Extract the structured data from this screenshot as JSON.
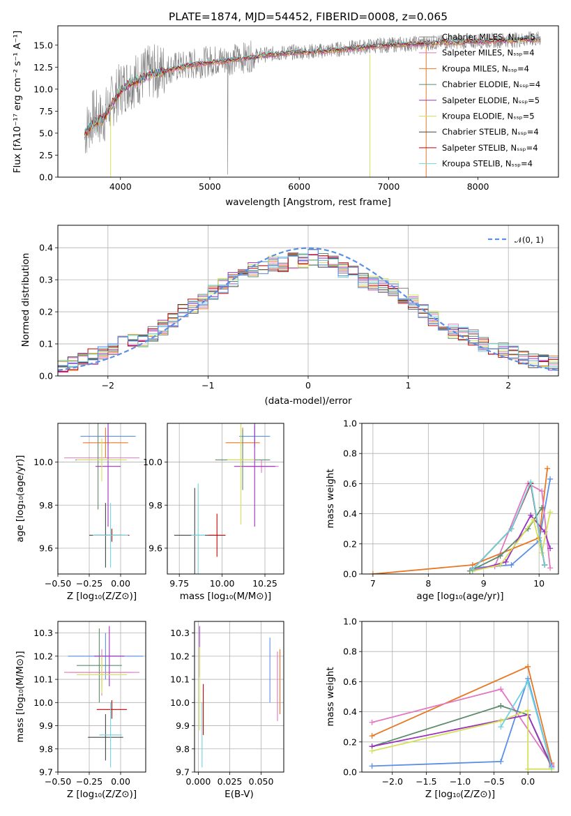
{
  "chart_data": [
    {
      "id": "spectrum",
      "type": "line",
      "title": "PLATE=1874, MJD=54452, FIBERID=0008, z=0.065",
      "xlabel": "wavelength [Angstrom, rest frame]",
      "ylabel": "Flux [fλ10⁻¹⁷ erg cm⁻² s⁻¹ A⁻¹]",
      "xlim": [
        3300,
        8900
      ],
      "ylim": [
        0,
        17.2
      ],
      "xticks": [
        4000,
        5000,
        6000,
        7000,
        8000
      ],
      "yticks": [
        0.0,
        2.5,
        5.0,
        7.5,
        10.0,
        12.5,
        15.0
      ],
      "grid": false,
      "legend_position": "top-right",
      "x": [
        3600,
        3700,
        3800,
        3900,
        4000,
        4100,
        4200,
        4300,
        4400,
        4500,
        4600,
        4700,
        4800,
        4900,
        5000,
        5100,
        5200,
        5300,
        5400,
        5500,
        5600,
        5700,
        5800,
        5900,
        6000,
        6100,
        6200,
        6300,
        6400,
        6500,
        6600,
        6700,
        6800,
        6900,
        7000,
        7100,
        7200,
        7300,
        7400,
        7500,
        7600,
        7700,
        7800,
        7900,
        8000,
        8100,
        8200,
        8300,
        8400,
        8500,
        8600,
        8700
      ],
      "data_flux": [
        5.0,
        7.0,
        6.5,
        8.5,
        10.0,
        10.8,
        11.2,
        11.8,
        12.0,
        12.2,
        12.5,
        12.6,
        12.8,
        13.0,
        13.2,
        13.3,
        13.3,
        13.5,
        13.6,
        13.8,
        13.9,
        14.0,
        14.1,
        14.2,
        14.2,
        14.3,
        14.3,
        14.4,
        14.5,
        14.6,
        14.7,
        14.8,
        14.9,
        15.0,
        15.0,
        15.1,
        15.1,
        15.2,
        15.2,
        15.3,
        15.3,
        15.4,
        15.4,
        15.4,
        15.5,
        15.5,
        15.5,
        15.6,
        15.6,
        15.6,
        15.7,
        15.7
      ],
      "model_flux": [
        4.8,
        6.2,
        6.5,
        8.2,
        9.8,
        10.6,
        11.0,
        11.5,
        11.8,
        12.0,
        12.3,
        12.5,
        12.7,
        12.9,
        13.0,
        13.1,
        13.2,
        13.4,
        13.5,
        13.6,
        13.8,
        13.9,
        14.0,
        14.1,
        14.2,
        14.2,
        14.3,
        14.3,
        14.4,
        14.5,
        14.6,
        14.7,
        14.8,
        14.9,
        15.0,
        15.0,
        15.1,
        15.1,
        15.2,
        15.2,
        15.3,
        15.3,
        15.3,
        15.4,
        15.4,
        15.4,
        15.5,
        15.5,
        15.5,
        15.6,
        15.6,
        15.6
      ],
      "series": [
        {
          "name": "Chabrier MILES, Nₛₛₚ=5",
          "color": "#7f7f7f"
        },
        {
          "name": "Salpeter MILES, Nₛₛₚ=4",
          "color": "#e377c2"
        },
        {
          "name": "Kroupa MILES, Nₛₛₚ=4",
          "color": "#e87722"
        },
        {
          "name": "Chabrier ELODIE, Nₛₛₚ=4",
          "color": "#5b8c6b"
        },
        {
          "name": "Salpeter ELODIE, Nₛₛₚ=5",
          "color": "#9b30c0"
        },
        {
          "name": "Kroupa ELODIE, Nₛₛₚ=5",
          "color": "#d4e157"
        },
        {
          "name": "Chabrier STELIB, Nₛₛₚ=4",
          "color": "#444444"
        },
        {
          "name": "Salpeter STELIB, Nₛₛₚ=4",
          "color": "#c00000"
        },
        {
          "name": "Kroupa STELIB, Nₛₛₚ=4",
          "color": "#6fd3dd"
        }
      ]
    },
    {
      "id": "residuals",
      "type": "line",
      "xlabel": "(data-model)/error",
      "ylabel": "Normed distribution",
      "xlim": [
        -2.5,
        2.5
      ],
      "ylim": [
        0,
        0.47
      ],
      "xticks": [
        -2,
        -1,
        0,
        1,
        2
      ],
      "yticks": [
        0.0,
        0.1,
        0.2,
        0.3,
        0.4
      ],
      "grid": true,
      "legend_position": "top-right",
      "gaussian_label": "𝒩(0, 1)",
      "bin_centers": [
        -2.45,
        -2.35,
        -2.25,
        -2.15,
        -2.05,
        -1.95,
        -1.85,
        -1.75,
        -1.65,
        -1.55,
        -1.45,
        -1.35,
        -1.25,
        -1.15,
        -1.05,
        -0.95,
        -0.85,
        -0.75,
        -0.65,
        -0.55,
        -0.45,
        -0.35,
        -0.25,
        -0.15,
        -0.05,
        0.05,
        0.15,
        0.25,
        0.35,
        0.45,
        0.55,
        0.65,
        0.75,
        0.85,
        0.95,
        1.05,
        1.15,
        1.25,
        1.35,
        1.45,
        1.55,
        1.65,
        1.75,
        1.85,
        1.95,
        2.05,
        2.15,
        2.25,
        2.35,
        2.45
      ],
      "histogram": [
        0.03,
        0.04,
        0.05,
        0.06,
        0.07,
        0.09,
        0.11,
        0.11,
        0.11,
        0.13,
        0.15,
        0.17,
        0.2,
        0.22,
        0.23,
        0.26,
        0.28,
        0.3,
        0.32,
        0.33,
        0.34,
        0.35,
        0.35,
        0.36,
        0.36,
        0.37,
        0.36,
        0.35,
        0.33,
        0.32,
        0.3,
        0.29,
        0.28,
        0.27,
        0.25,
        0.23,
        0.2,
        0.18,
        0.16,
        0.14,
        0.13,
        0.12,
        0.1,
        0.09,
        0.08,
        0.07,
        0.06,
        0.05,
        0.05,
        0.04
      ],
      "series_colors": [
        "#7f7f7f",
        "#e377c2",
        "#e87722",
        "#5b8c6b",
        "#9b30c0",
        "#d4e157",
        "#444444",
        "#c00000",
        "#6fd3dd",
        "#5b8ee6"
      ]
    },
    {
      "id": "z-age",
      "type": "scatter",
      "xlabel": "Z [log₁₀(Z/Z⊙)]",
      "ylabel": "age  [log₁₀(age/yr)]",
      "xlim": [
        -0.5,
        0.2
      ],
      "ylim": [
        9.48,
        10.18
      ],
      "xticks": [
        -0.5,
        -0.25,
        0.0
      ],
      "xtick_labels": [
        "−0.50",
        "−0.25",
        "0.00"
      ],
      "yticks": [
        9.6,
        9.8,
        10.0
      ],
      "grid": true,
      "points": [
        {
          "x": -0.1,
          "y": 10.12,
          "xerr": 0.22,
          "yerr": 0.05,
          "color": "#5b8ee6"
        },
        {
          "x": -0.12,
          "y": 10.09,
          "xerr": 0.18,
          "yerr": 0.07,
          "color": "#e87722"
        },
        {
          "x": -0.15,
          "y": 10.02,
          "xerr": 0.3,
          "yerr": 0.04,
          "color": "#e377c2"
        },
        {
          "x": -0.18,
          "y": 10.01,
          "xerr": 0.18,
          "yerr": 0.23,
          "color": "#5b8c6b"
        },
        {
          "x": -0.1,
          "y": 9.98,
          "xerr": 0.1,
          "yerr": 0.28,
          "color": "#9b30c0"
        },
        {
          "x": -0.15,
          "y": 10.01,
          "xerr": 0.2,
          "yerr": 0.1,
          "color": "#d4e157"
        },
        {
          "x": -0.12,
          "y": 9.66,
          "xerr": 0.13,
          "yerr": 0.15,
          "color": "#444444"
        },
        {
          "x": -0.07,
          "y": 9.66,
          "xerr": 0.14,
          "yerr": 0.03,
          "color": "#c00000"
        },
        {
          "x": -0.08,
          "y": 9.66,
          "xerr": 0.14,
          "yerr": 0.15,
          "color": "#6fd3dd"
        }
      ]
    },
    {
      "id": "mass-age",
      "type": "scatter",
      "xlabel": "mass [log₁₀(M/M⊙)]",
      "xlim": [
        9.68,
        10.36
      ],
      "ylim": [
        9.48,
        10.18
      ],
      "xticks": [
        9.75,
        10.0,
        10.25
      ],
      "xtick_labels": [
        "9.75",
        "10.00",
        "10.25"
      ],
      "yticks": [
        9.6,
        9.8,
        10.0
      ],
      "grid": true,
      "points": [
        {
          "x": 10.19,
          "y": 10.12,
          "xerr": 0.09,
          "yerr": 0.05,
          "color": "#5b8ee6"
        },
        {
          "x": 10.12,
          "y": 10.09,
          "xerr": 0.1,
          "yerr": 0.07,
          "color": "#e87722"
        },
        {
          "x": 10.23,
          "y": 9.98,
          "xerr": 0.1,
          "yerr": 0.03,
          "color": "#e377c2"
        },
        {
          "x": 10.12,
          "y": 10.01,
          "xerr": 0.16,
          "yerr": 0.14,
          "color": "#5b8c6b"
        },
        {
          "x": 10.19,
          "y": 9.98,
          "xerr": 0.12,
          "yerr": 0.28,
          "color": "#9b30c0"
        },
        {
          "x": 10.11,
          "y": 10.01,
          "xerr": 0.08,
          "yerr": 0.3,
          "color": "#d4e157"
        },
        {
          "x": 9.84,
          "y": 9.66,
          "xerr": 0.12,
          "yerr": 0.22,
          "color": "#444444"
        },
        {
          "x": 9.97,
          "y": 9.66,
          "xerr": 0.05,
          "yerr": 0.1,
          "color": "#c00000"
        },
        {
          "x": 9.86,
          "y": 9.66,
          "xerr": 0.04,
          "yerr": 0.24,
          "color": "#6fd3dd"
        }
      ]
    },
    {
      "id": "age-weight",
      "type": "line",
      "xlabel": "age  [log₁₀(age/yr)]",
      "ylabel": "mass weight",
      "xlim": [
        6.8,
        10.35
      ],
      "ylim": [
        0,
        1.0
      ],
      "xticks": [
        7,
        8,
        9,
        10
      ],
      "yticks": [
        0.0,
        0.2,
        0.4,
        0.6,
        0.8,
        1.0
      ],
      "grid": true,
      "series": [
        {
          "color": "#5b8ee6",
          "x": [
            8.8,
            9.5,
            10.0,
            10.2
          ],
          "y": [
            0.04,
            0.06,
            0.22,
            0.63
          ]
        },
        {
          "color": "#e87722",
          "x": [
            7.0,
            8.8,
            10.0,
            10.15
          ],
          "y": [
            0.0,
            0.06,
            0.24,
            0.7
          ]
        },
        {
          "color": "#e377c2",
          "x": [
            8.8,
            9.2,
            9.8,
            10.05,
            10.2
          ],
          "y": [
            0.03,
            0.05,
            0.6,
            0.55,
            0.04
          ]
        },
        {
          "color": "#5b8c6b",
          "x": [
            8.75,
            9.3,
            9.8,
            10.05
          ],
          "y": [
            0.02,
            0.12,
            0.3,
            0.44
          ]
        },
        {
          "color": "#9b30c0",
          "x": [
            8.8,
            9.4,
            9.85,
            10.1,
            10.2
          ],
          "y": [
            0.02,
            0.08,
            0.39,
            0.28,
            0.17
          ]
        },
        {
          "color": "#d4e157",
          "x": [
            8.8,
            9.3,
            9.9,
            10.05,
            10.2
          ],
          "y": [
            0.02,
            0.06,
            0.36,
            0.14,
            0.41
          ]
        },
        {
          "color": "#444444",
          "x": [
            8.8,
            9.5,
            9.85,
            10.1
          ],
          "y": [
            0.03,
            0.3,
            0.6,
            0.06
          ]
        },
        {
          "color": "#c00000",
          "x": [
            8.8,
            9.5,
            9.85,
            10.1
          ],
          "y": [
            0.03,
            0.3,
            0.6,
            0.06
          ]
        },
        {
          "color": "#6fd3dd",
          "x": [
            8.8,
            9.5,
            9.85,
            10.1
          ],
          "y": [
            0.03,
            0.3,
            0.61,
            0.06
          ]
        }
      ]
    },
    {
      "id": "z-mass",
      "type": "scatter",
      "xlabel": "Z [log₁₀(Z/Z⊙)]",
      "ylabel": "mass [log₁₀(M/M⊙)]",
      "xlim": [
        -0.5,
        0.2
      ],
      "ylim": [
        9.7,
        10.35
      ],
      "xticks": [
        -0.5,
        -0.25,
        0.0
      ],
      "xtick_labels": [
        "−0.50",
        "−0.25",
        "0.00"
      ],
      "yticks": [
        9.7,
        9.8,
        9.9,
        10.0,
        10.1,
        10.2,
        10.3
      ],
      "grid": true,
      "points": [
        {
          "x": -0.12,
          "y": 10.2,
          "xerr": 0.3,
          "yerr": 0.1,
          "color": "#5b8ee6"
        },
        {
          "x": -0.15,
          "y": 10.13,
          "xerr": 0.25,
          "yerr": 0.07,
          "color": "#e87722"
        },
        {
          "x": -0.15,
          "y": 10.13,
          "xerr": 0.3,
          "yerr": 0.1,
          "color": "#e377c2"
        },
        {
          "x": -0.17,
          "y": 10.16,
          "xerr": 0.18,
          "yerr": 0.16,
          "color": "#5b8c6b"
        },
        {
          "x": -0.09,
          "y": 10.2,
          "xerr": 0.12,
          "yerr": 0.13,
          "color": "#9b30c0"
        },
        {
          "x": -0.15,
          "y": 10.12,
          "xerr": 0.2,
          "yerr": 0.08,
          "color": "#d4e157"
        },
        {
          "x": -0.12,
          "y": 9.85,
          "xerr": 0.14,
          "yerr": 0.1,
          "color": "#444444"
        },
        {
          "x": -0.07,
          "y": 9.97,
          "xerr": 0.12,
          "yerr": 0.04,
          "color": "#c00000"
        },
        {
          "x": -0.08,
          "y": 9.86,
          "xerr": 0.09,
          "yerr": 0.14,
          "color": "#6fd3dd"
        }
      ]
    },
    {
      "id": "ebv-mass",
      "type": "scatter",
      "xlabel": "E(B-V)",
      "xlim": [
        -0.003,
        0.068
      ],
      "ylim": [
        9.7,
        10.35
      ],
      "xticks": [
        0.0,
        0.025,
        0.05
      ],
      "xtick_labels": [
        "0.000",
        "0.025",
        "0.050"
      ],
      "yticks": [
        9.7,
        9.8,
        9.9,
        10.0,
        10.1,
        10.2,
        10.3
      ],
      "grid": true,
      "points": [
        {
          "x": 0.057,
          "y": 10.14,
          "yerr": 0.14,
          "color": "#5b8ee6"
        },
        {
          "x": 0.065,
          "y": 10.09,
          "yerr": 0.14,
          "color": "#e87722"
        },
        {
          "x": 0.063,
          "y": 10.07,
          "yerr": 0.15,
          "color": "#e377c2"
        },
        {
          "x": 0.001,
          "y": 10.22,
          "yerr": 0.11,
          "color": "#9b30c0"
        },
        {
          "x": 0.001,
          "y": 10.06,
          "yerr": 0.18,
          "color": "#d4e157"
        },
        {
          "x": 0.004,
          "y": 9.97,
          "yerr": 0.11,
          "color": "#c00000"
        },
        {
          "x": 0.003,
          "y": 9.86,
          "yerr": 0.14,
          "color": "#6fd3dd"
        }
      ]
    },
    {
      "id": "z-weight",
      "type": "line",
      "xlabel": "Z [log₁₀(Z/Z⊙)]",
      "ylabel": "mass weight",
      "xlim": [
        -2.45,
        0.45
      ],
      "ylim": [
        0,
        1.0
      ],
      "xticks": [
        -2.0,
        -1.5,
        -1.0,
        -0.5,
        0.0
      ],
      "xtick_labels": [
        "−2.0",
        "−1.5",
        "−1.0",
        "−0.5",
        "0.0"
      ],
      "yticks": [
        0.0,
        0.2,
        0.4,
        0.6,
        0.8,
        1.0
      ],
      "grid": true,
      "series": [
        {
          "color": "#5b8ee6",
          "x": [
            -2.3,
            -0.4,
            0.0,
            0.35
          ],
          "y": [
            0.04,
            0.07,
            0.62,
            0.03
          ]
        },
        {
          "color": "#e87722",
          "x": [
            -2.3,
            0.0,
            0.35
          ],
          "y": [
            0.24,
            0.7,
            0.06
          ]
        },
        {
          "color": "#e377c2",
          "x": [
            -2.3,
            -0.4,
            0.35
          ],
          "y": [
            0.33,
            0.55,
            0.05
          ]
        },
        {
          "color": "#5b8c6b",
          "x": [
            -2.3,
            -0.4,
            0.0,
            0.35
          ],
          "y": [
            0.17,
            0.44,
            0.38,
            0.03
          ]
        },
        {
          "color": "#9b30c0",
          "x": [
            -2.3,
            0.0,
            0.35
          ],
          "y": [
            0.17,
            0.38,
            0.04
          ]
        },
        {
          "color": "#d4e157",
          "x": [
            -2.3,
            -0.4,
            0.0,
            0.0,
            0.35
          ],
          "y": [
            0.14,
            0.34,
            0.41,
            0.02,
            0.02
          ]
        },
        {
          "color": "#6fd3dd",
          "x": [
            -0.4,
            0.0,
            0.35
          ],
          "y": [
            0.3,
            0.6,
            0.03
          ]
        }
      ]
    }
  ]
}
